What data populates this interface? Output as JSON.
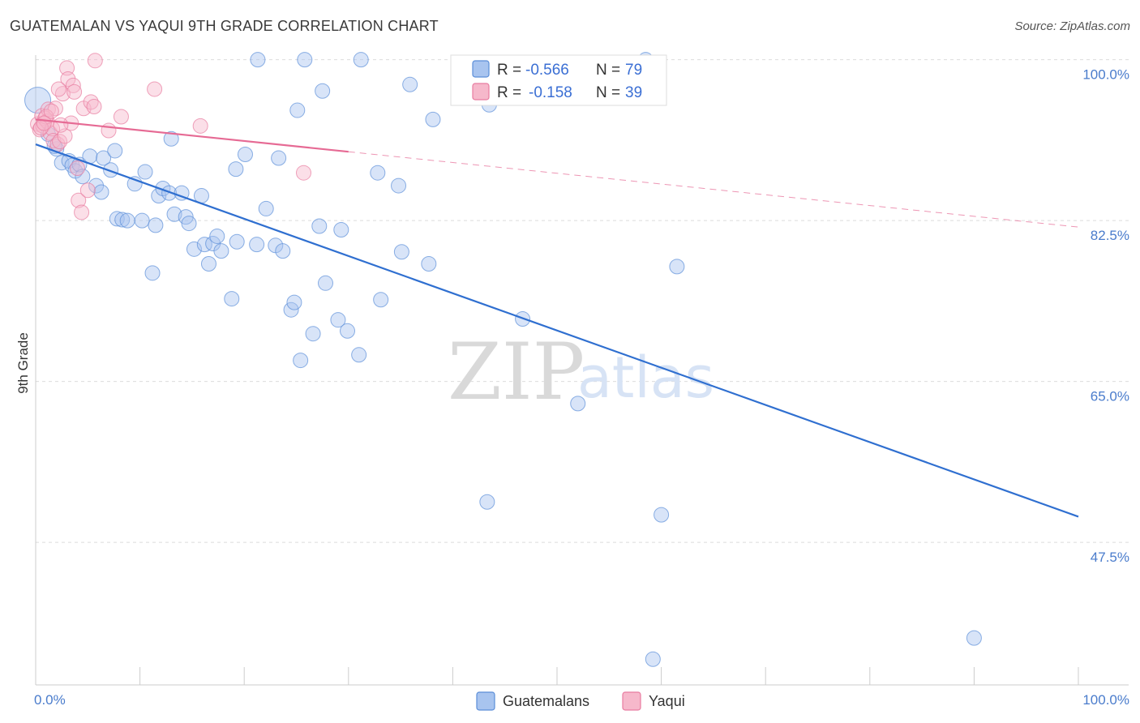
{
  "header": {
    "title": "GUATEMALAN VS YAQUI 9TH GRADE CORRELATION CHART",
    "source": "Source: ZipAtlas.com"
  },
  "watermark": {
    "zip": "ZIP",
    "atlas": "atlas"
  },
  "legend": {
    "rows": [
      {
        "r_label": "R =",
        "r_value": "-0.566",
        "n_label": "N =",
        "n_value": "79",
        "color": "#a8c4ef"
      },
      {
        "r_label": "R =",
        "r_value": "-0.158",
        "n_label": "N =",
        "n_value": "39",
        "color": "#f6b8cb"
      }
    ]
  },
  "bottom_legend": [
    {
      "label": "Guatemalans",
      "color": "#a8c4ef"
    },
    {
      "label": "Yaqui",
      "color": "#f6b8cb"
    }
  ],
  "chart_data": {
    "type": "scatter",
    "title": "GUATEMALAN VS YAQUI 9TH GRADE CORRELATION CHART",
    "xlabel": "",
    "ylabel": "9th Grade",
    "xlim": [
      0,
      100
    ],
    "ylim": [
      32,
      100.5
    ],
    "x_tick_labels": [
      "0.0%",
      "100.0%"
    ],
    "y_ticks": [
      100,
      82.5,
      65,
      47.5
    ],
    "y_tick_labels": [
      "100.0%",
      "82.5%",
      "65.0%",
      "47.5%"
    ],
    "grid": true,
    "legend_position": "top-center",
    "series": [
      {
        "name": "Guatemalans",
        "color": "#a8c4ef",
        "stroke": "#5b8ed8",
        "trend": {
          "x": [
            0,
            100
          ],
          "y": [
            90.8,
            50.3
          ],
          "color": "#2f6fd0",
          "dashed_from": null
        },
        "points": [
          [
            0.2,
            95.6
          ],
          [
            1.2,
            91.9
          ],
          [
            2,
            90.3
          ],
          [
            2.5,
            88.8
          ],
          [
            3.2,
            89.0
          ],
          [
            3.5,
            88.5
          ],
          [
            3.8,
            87.9
          ],
          [
            4.2,
            88.6
          ],
          [
            4.5,
            87.3
          ],
          [
            5.2,
            89.5
          ],
          [
            5.8,
            86.3
          ],
          [
            6.3,
            85.6
          ],
          [
            6.5,
            89.3
          ],
          [
            7.2,
            88.0
          ],
          [
            7.6,
            90.1
          ],
          [
            7.8,
            82.7
          ],
          [
            8.3,
            82.6
          ],
          [
            8.8,
            82.5
          ],
          [
            9.5,
            86.5
          ],
          [
            10.2,
            82.5
          ],
          [
            10.5,
            87.8
          ],
          [
            11.2,
            76.8
          ],
          [
            11.5,
            82.0
          ],
          [
            11.8,
            85.2
          ],
          [
            12.2,
            86.0
          ],
          [
            12.8,
            85.5
          ],
          [
            13.0,
            91.4
          ],
          [
            13.3,
            83.2
          ],
          [
            14.0,
            85.5
          ],
          [
            14.4,
            82.9
          ],
          [
            14.7,
            82.2
          ],
          [
            15.2,
            79.4
          ],
          [
            15.9,
            85.2
          ],
          [
            16.2,
            79.9
          ],
          [
            16.6,
            77.8
          ],
          [
            17.0,
            80.0
          ],
          [
            17.4,
            80.8
          ],
          [
            17.8,
            79.2
          ],
          [
            18.8,
            74.0
          ],
          [
            19.2,
            88.1
          ],
          [
            19.3,
            80.2
          ],
          [
            20.1,
            89.7
          ],
          [
            21.2,
            79.9
          ],
          [
            21.3,
            100.0
          ],
          [
            22.1,
            83.8
          ],
          [
            23.0,
            79.8
          ],
          [
            23.3,
            89.3
          ],
          [
            23.7,
            79.2
          ],
          [
            24.5,
            72.8
          ],
          [
            24.8,
            73.6
          ],
          [
            25.1,
            94.5
          ],
          [
            25.4,
            67.3
          ],
          [
            25.8,
            100.0
          ],
          [
            26.6,
            70.2
          ],
          [
            27.2,
            81.9
          ],
          [
            27.5,
            96.6
          ],
          [
            27.8,
            75.7
          ],
          [
            29.0,
            71.7
          ],
          [
            29.3,
            81.5
          ],
          [
            29.9,
            70.5
          ],
          [
            31.0,
            67.9
          ],
          [
            31.2,
            100.0
          ],
          [
            32.8,
            87.7
          ],
          [
            33.1,
            73.9
          ],
          [
            34.8,
            86.3
          ],
          [
            35.1,
            79.1
          ],
          [
            35.9,
            97.3
          ],
          [
            37.7,
            77.8
          ],
          [
            38.1,
            93.5
          ],
          [
            43.3,
            51.9
          ],
          [
            43.5,
            95.1
          ],
          [
            46.7,
            71.8
          ],
          [
            52.0,
            62.6
          ],
          [
            58.5,
            100.0
          ],
          [
            59.2,
            34.8
          ],
          [
            60.0,
            50.5
          ],
          [
            61.5,
            77.5
          ],
          [
            90.0,
            37.1
          ],
          [
            1.8,
            90.6
          ]
        ]
      },
      {
        "name": "Yaqui",
        "color": "#f6b8cb",
        "stroke": "#e87ca0",
        "trend": {
          "x": [
            0,
            100
          ],
          "y": [
            93.5,
            81.8
          ],
          "color": "#e66a94",
          "dashed_from": 30
        },
        "points": [
          [
            0.2,
            93.0
          ],
          [
            0.4,
            92.4
          ],
          [
            0.6,
            93.9
          ],
          [
            0.7,
            92.8
          ],
          [
            0.9,
            93.6
          ],
          [
            1.1,
            93.3
          ],
          [
            1.2,
            94.6
          ],
          [
            1.4,
            92.0
          ],
          [
            1.6,
            92.5
          ],
          [
            1.7,
            91.2
          ],
          [
            1.9,
            94.7
          ],
          [
            2.1,
            90.8
          ],
          [
            2.3,
            91.1
          ],
          [
            2.6,
            96.3
          ],
          [
            2.8,
            91.7
          ],
          [
            3.0,
            99.1
          ],
          [
            3.1,
            97.9
          ],
          [
            3.4,
            93.1
          ],
          [
            3.6,
            97.2
          ],
          [
            3.7,
            96.5
          ],
          [
            4.0,
            88.2
          ],
          [
            4.1,
            84.7
          ],
          [
            4.4,
            83.4
          ],
          [
            4.6,
            94.7
          ],
          [
            5.0,
            85.8
          ],
          [
            5.3,
            95.4
          ],
          [
            5.6,
            94.9
          ],
          [
            5.7,
            99.9
          ],
          [
            7.0,
            92.3
          ],
          [
            8.2,
            93.8
          ],
          [
            11.4,
            96.8
          ],
          [
            15.8,
            92.8
          ],
          [
            25.7,
            87.7
          ],
          [
            1.0,
            93.8
          ],
          [
            0.5,
            92.6
          ],
          [
            2.2,
            96.8
          ],
          [
            1.5,
            94.4
          ],
          [
            0.8,
            93.1
          ],
          [
            2.4,
            92.9
          ]
        ]
      }
    ]
  }
}
